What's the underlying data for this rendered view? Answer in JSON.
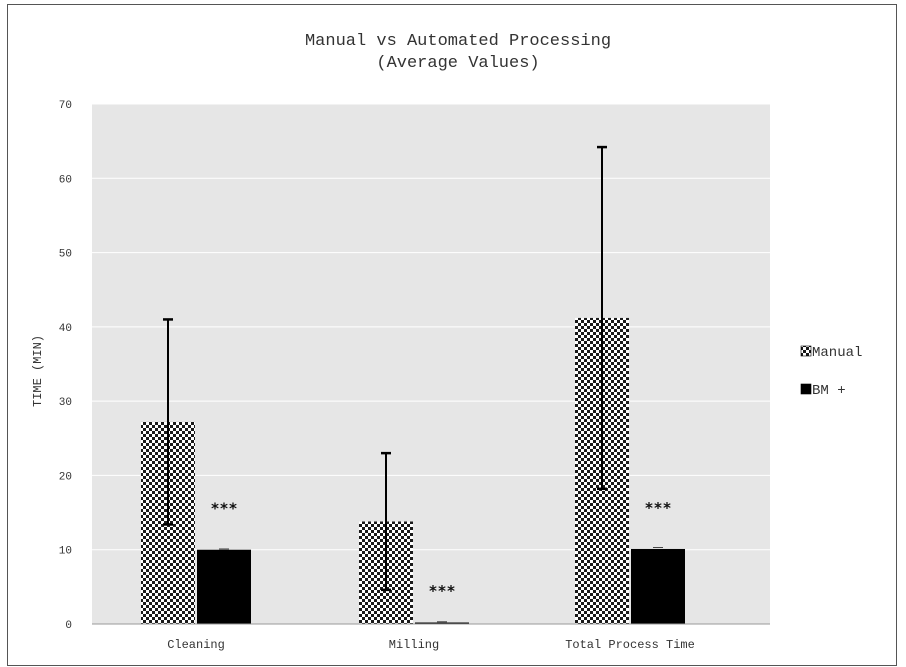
{
  "chart_data": {
    "type": "bar",
    "title": "Manual vs Automated Processing",
    "subtitle": "(Average Values)",
    "ylabel": "TIME (MIN)",
    "xlabel": "",
    "ylim": [
      0,
      70
    ],
    "yticks": [
      0,
      10,
      20,
      30,
      40,
      50,
      60,
      70
    ],
    "grid": true,
    "legend_position": "right",
    "categories": [
      "Cleaning",
      "Milling",
      "Total Process Time"
    ],
    "series": [
      {
        "name": "Manual",
        "pattern": "checkered",
        "color": "#000000",
        "values": [
          27.2,
          13.8,
          41.2
        ],
        "error_upper": [
          41.0,
          23.0,
          64.2
        ],
        "error_lower": [
          13.4,
          4.6,
          18.2
        ]
      },
      {
        "name": "BM +",
        "pattern": "solid",
        "color": "#000000",
        "values": [
          10.0,
          0.2,
          10.1
        ],
        "error_upper": [
          10.1,
          0.3,
          10.3
        ],
        "error_lower": [
          9.9,
          0.1,
          9.9
        ]
      }
    ],
    "annotations": [
      "***",
      "***",
      "***"
    ],
    "plot_background": "#e6e6e6"
  }
}
